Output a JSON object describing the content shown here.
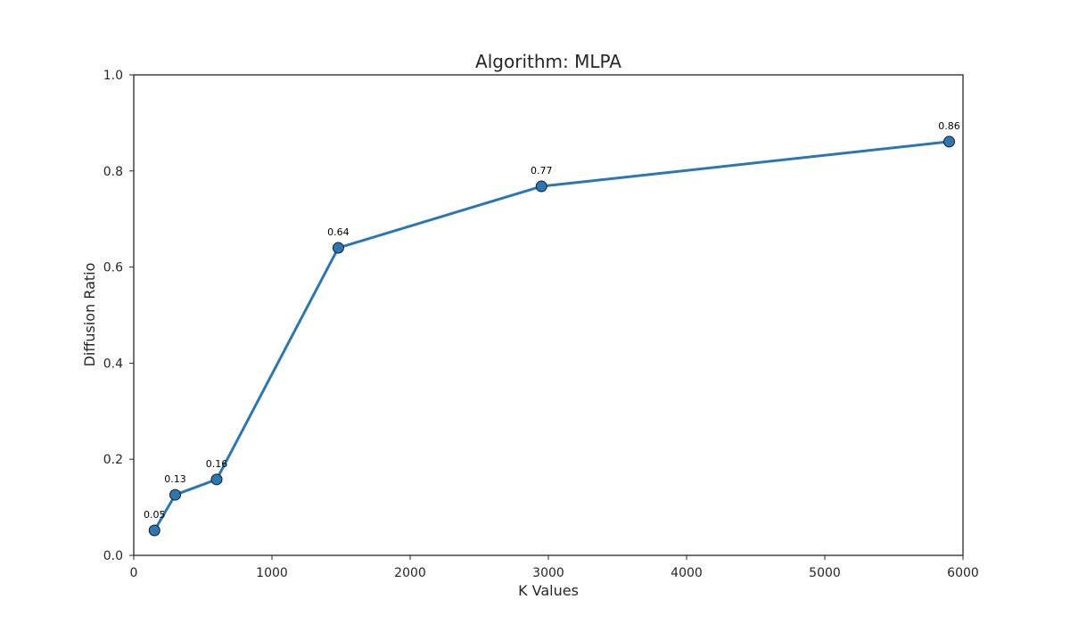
{
  "chart_data": {
    "type": "line",
    "title": "Algorithm: MLPA",
    "xlabel": "K Values",
    "ylabel": "Diffusion Ratio",
    "xlim": [
      0,
      6000
    ],
    "ylim": [
      0,
      1.0
    ],
    "x_ticks": [
      0,
      1000,
      2000,
      3000,
      4000,
      5000,
      6000
    ],
    "x_tick_labels": [
      "0",
      "1000",
      "2000",
      "3000",
      "4000",
      "5000",
      "6000"
    ],
    "y_ticks": [
      0,
      0.2,
      0.4,
      0.6,
      0.8,
      1.0
    ],
    "y_tick_labels": [
      "0.0",
      "0.2",
      "0.4",
      "0.6",
      "0.8",
      "1.0"
    ],
    "grid": false,
    "series": [
      {
        "x": [
          150,
          300,
          600,
          1480,
          2950,
          5900
        ],
        "y": [
          0.052,
          0.126,
          0.158,
          0.64,
          0.768,
          0.861
        ],
        "labels": [
          "0.05",
          "0.13",
          "0.16",
          "0.64",
          "0.77",
          "0.86"
        ],
        "color": "#2a77b4",
        "marker_edge_color": "#1a1a1a"
      }
    ]
  }
}
